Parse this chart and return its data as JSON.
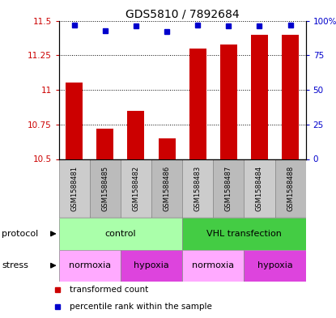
{
  "title": "GDS5810 / 7892684",
  "samples": [
    "GSM1588481",
    "GSM1588485",
    "GSM1588482",
    "GSM1588486",
    "GSM1588483",
    "GSM1588487",
    "GSM1588484",
    "GSM1588488"
  ],
  "bar_values": [
    11.05,
    10.72,
    10.85,
    10.65,
    11.3,
    11.33,
    11.4,
    11.4
  ],
  "percentile_values": [
    97,
    93,
    96,
    92,
    97,
    96,
    96,
    97
  ],
  "ylim": [
    10.5,
    11.5
  ],
  "yticks": [
    10.5,
    10.75,
    11.0,
    11.25,
    11.5
  ],
  "ytick_labels": [
    "10.5",
    "10.75",
    "11",
    "11.25",
    "11.5"
  ],
  "right_yticks": [
    0,
    25,
    50,
    75,
    100
  ],
  "right_ytick_labels": [
    "0",
    "25",
    "50",
    "75",
    "100%"
  ],
  "bar_color": "#cc0000",
  "dot_color": "#0000cc",
  "bar_width": 0.55,
  "protocol_labels": [
    "control",
    "VHL transfection"
  ],
  "protocol_colors": [
    "#aaffaa",
    "#44cc44"
  ],
  "stress_labels": [
    "normoxia",
    "hypoxia",
    "normoxia",
    "hypoxia"
  ],
  "stress_colors": [
    "#ffaaff",
    "#dd44dd",
    "#ffaaff",
    "#dd44dd"
  ],
  "left_label_color": "#000000",
  "xlabel_color_left": "#cc0000",
  "xlabel_color_right": "#0000cc",
  "sample_bg_even": "#cccccc",
  "sample_bg_odd": "#bbbbbb"
}
